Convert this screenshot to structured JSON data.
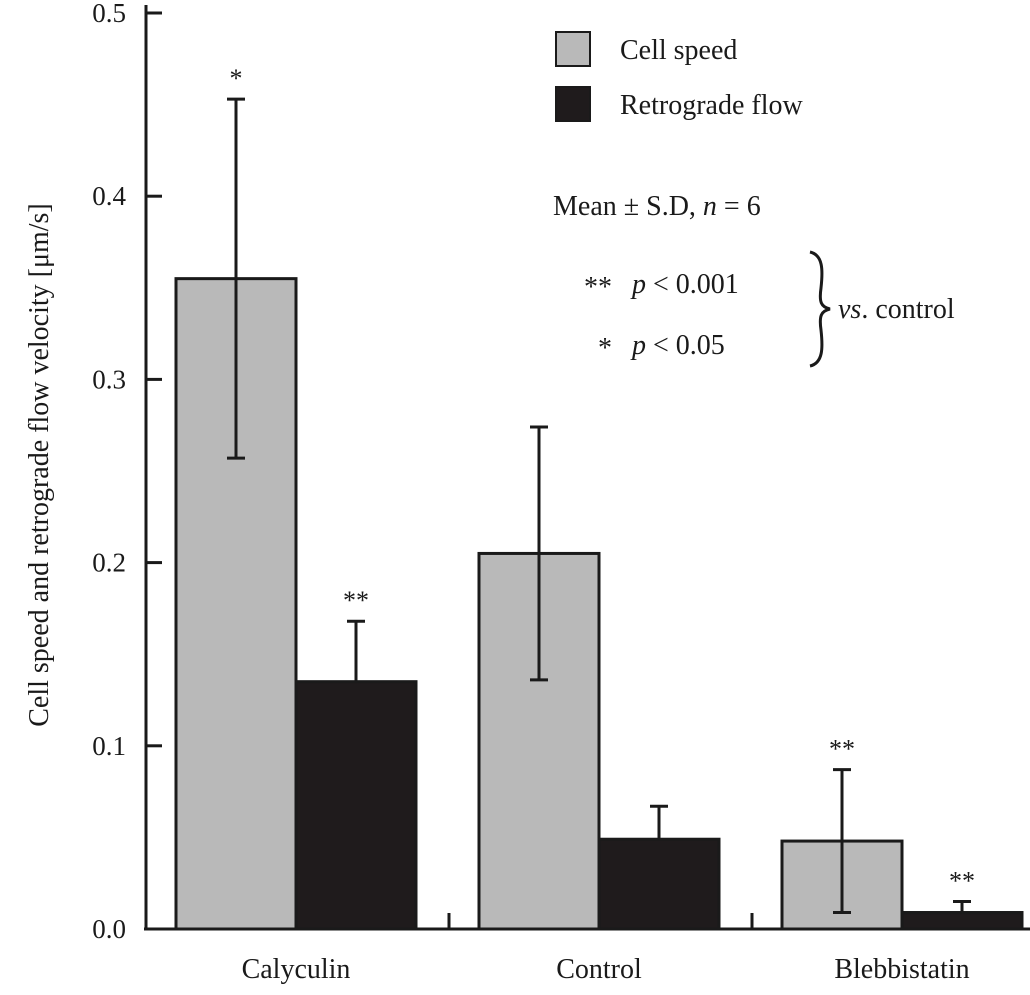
{
  "chart_data": {
    "type": "bar",
    "title": "",
    "xlabel": "",
    "ylabel": "Cell speed and retrograde flow velocity [μm/s]",
    "ylim": [
      0.0,
      0.5
    ],
    "yticks": [
      "0.0",
      "0.1",
      "0.2",
      "0.3",
      "0.4",
      "0.5"
    ],
    "categories": [
      "Calyculin",
      "Control",
      "Blebbistatin"
    ],
    "series": [
      {
        "name": "Cell speed",
        "color": "#b9b9b9",
        "values": [
          0.355,
          0.205,
          0.048
        ],
        "errors": [
          0.098,
          0.069,
          0.039
        ],
        "significance": [
          "*",
          "",
          "**"
        ]
      },
      {
        "name": "Retrograde flow",
        "color": "#1f1b1c",
        "values": [
          0.135,
          0.049,
          0.009
        ],
        "errors": [
          0.033,
          0.018,
          0.006
        ],
        "significance": [
          "**",
          "",
          "**"
        ]
      }
    ],
    "legend": {
      "placement": "top-right"
    },
    "annotations": {
      "stats_note_prefix": "Mean ± S.D, ",
      "stats_note_n": "n",
      "stats_note_suffix": " = 6",
      "sig_rows": [
        {
          "stars": "**",
          "p": "p",
          "rest": " < 0.001"
        },
        {
          "stars": "*",
          "p": "p",
          "rest": " < 0.05"
        }
      ],
      "vs_italic": "vs",
      "vs_rest": ". control"
    },
    "grid": false
  }
}
